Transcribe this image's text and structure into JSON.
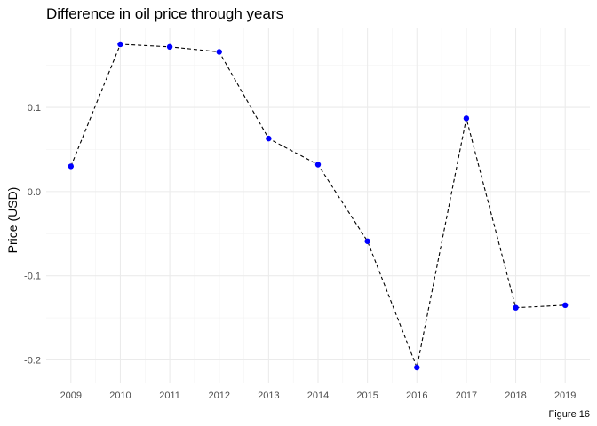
{
  "chart_data": {
    "type": "line",
    "title": "Difference in oil price through years",
    "xlabel": "",
    "ylabel": "Price (USD)",
    "caption": "Figure 16",
    "x": [
      2009,
      2010,
      2011,
      2012,
      2013,
      2014,
      2015,
      2016,
      2017,
      2018,
      2019
    ],
    "series": [
      {
        "values": [
          0.03,
          0.175,
          0.172,
          0.166,
          0.063,
          0.032,
          -0.059,
          -0.209,
          0.087,
          -0.138,
          -0.135
        ],
        "line_color": "#000000",
        "line_style": "dashed",
        "point_color": "#0000ff"
      }
    ],
    "yticks": [
      -0.2,
      -0.1,
      0.0,
      0.1
    ],
    "ytick_labels": [
      "-0.2",
      "-0.1",
      "0.0",
      "0.1"
    ],
    "xtick_labels": [
      "2009",
      "2010",
      "2011",
      "2012",
      "2013",
      "2014",
      "2015",
      "2016",
      "2017",
      "2018",
      "2019"
    ],
    "xlim": [
      2008.5,
      2019.5
    ],
    "ylim": [
      -0.228,
      0.195
    ],
    "grid": true,
    "legend": "none"
  }
}
